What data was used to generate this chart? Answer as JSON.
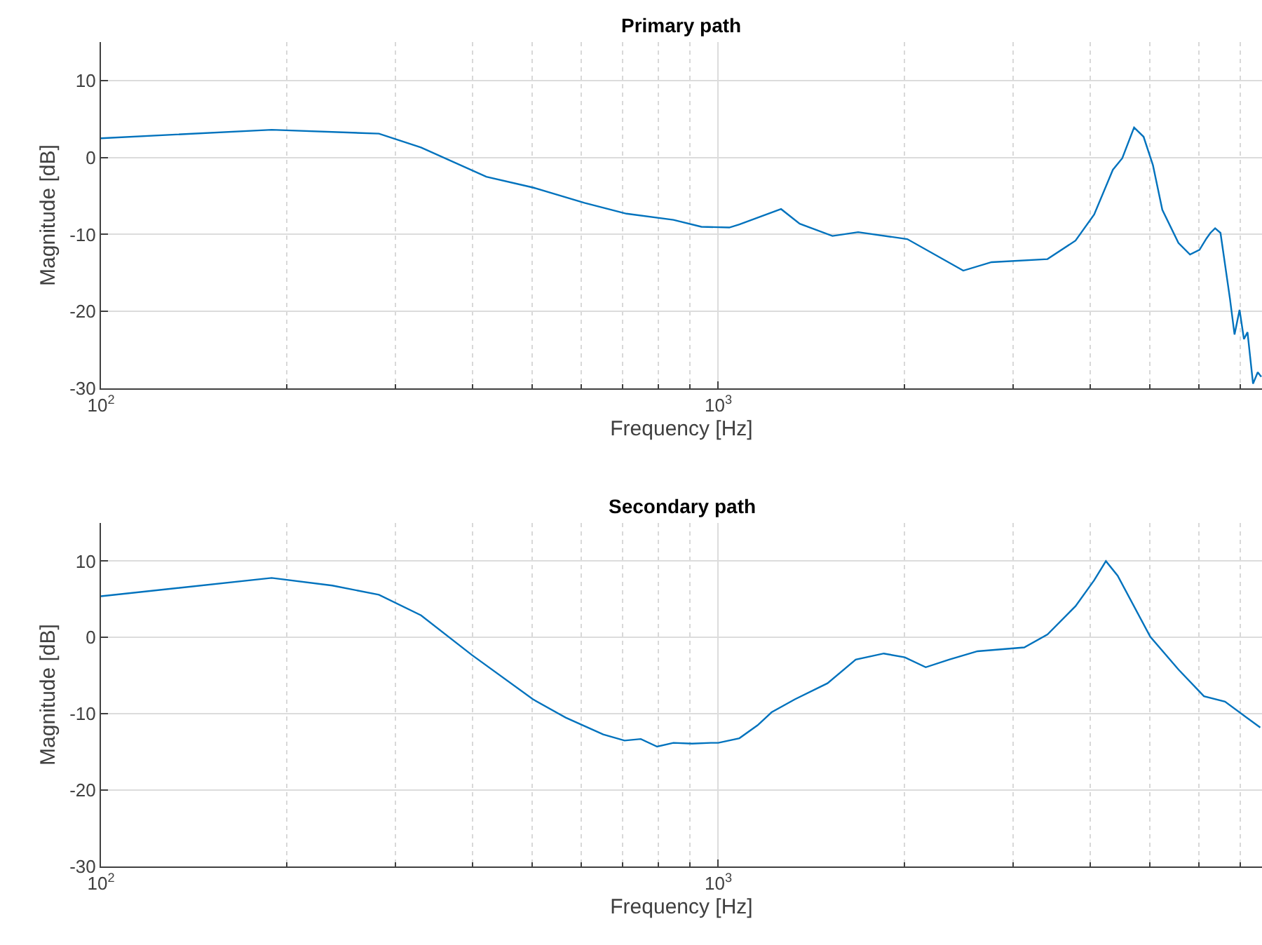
{
  "chart_data": [
    {
      "type": "line",
      "title": "Primary path",
      "xlabel": "Frequency [Hz]",
      "ylabel": "Magnitude [dB]",
      "log": "x",
      "grid": true,
      "marker": "none",
      "line_style": "solid",
      "xlim": [
        100,
        7600
      ],
      "ylim": [
        -30,
        15
      ],
      "xticks": [
        {
          "value": 100,
          "label": "10$^{2}$"
        },
        {
          "value": 200,
          "label": null
        },
        {
          "value": 300,
          "label": null
        },
        {
          "value": 400,
          "label": null
        },
        {
          "value": 500,
          "label": null
        },
        {
          "value": 600,
          "label": null
        },
        {
          "value": 700,
          "label": null
        },
        {
          "value": 800,
          "label": null
        },
        {
          "value": 900,
          "label": null
        },
        {
          "value": 1000,
          "label": "10$^{3}$"
        },
        {
          "value": 2000,
          "label": null
        },
        {
          "value": 3000,
          "label": null
        },
        {
          "value": 4000,
          "label": null
        },
        {
          "value": 5000,
          "label": null
        },
        {
          "value": 6000,
          "label": null
        },
        {
          "value": 7000,
          "label": null
        }
      ],
      "yticks": [
        -30,
        -20,
        -10,
        0,
        10
      ],
      "series": [
        {
          "color": "#0072bd",
          "x": [
            100,
            189,
            282,
            330,
            421,
            501,
            607,
            710,
            846,
            939,
            1042,
            1082,
            1264,
            1355,
            1531,
            1685,
            2024,
            2494,
            2771,
            3414,
            3791,
            4064,
            4357,
            4513,
            4716,
            4886,
            5060,
            5240,
            5565,
            5810,
            6020,
            6180,
            6270,
            6380,
            6510,
            6745,
            6860,
            6990,
            7105,
            7200,
            7350,
            7480,
            7580
          ],
          "values": [
            2.5,
            3.6,
            3.1,
            1.3,
            -2.5,
            -3.9,
            -5.9,
            -7.3,
            -8.1,
            -9.0,
            -9.1,
            -8.7,
            -6.7,
            -8.6,
            -10.2,
            -9.7,
            -10.6,
            -14.7,
            -13.6,
            -13.2,
            -10.8,
            -7.4,
            -1.6,
            -0.1,
            3.9,
            2.7,
            -1.0,
            -6.8,
            -11.1,
            -12.6,
            -12.0,
            -10.5,
            -9.8,
            -9.2,
            -9.8,
            -18.4,
            -23.0,
            -19.8,
            -23.6,
            -22.7,
            -29.4,
            -27.9,
            -28.5
          ]
        }
      ]
    },
    {
      "type": "line",
      "title": "Secondary path",
      "xlabel": "Frequency [Hz]",
      "ylabel": "Magnitude [dB]",
      "log": "x",
      "grid": true,
      "marker": "none",
      "line_style": "solid",
      "xlim": [
        100,
        7600
      ],
      "ylim": [
        -30,
        15
      ],
      "xticks": [
        {
          "value": 100,
          "label": "10$^{2}$"
        },
        {
          "value": 200,
          "label": null
        },
        {
          "value": 300,
          "label": null
        },
        {
          "value": 400,
          "label": null
        },
        {
          "value": 500,
          "label": null
        },
        {
          "value": 600,
          "label": null
        },
        {
          "value": 700,
          "label": null
        },
        {
          "value": 800,
          "label": null
        },
        {
          "value": 900,
          "label": null
        },
        {
          "value": 1000,
          "label": "10$^{3}$"
        },
        {
          "value": 2000,
          "label": null
        },
        {
          "value": 3000,
          "label": null
        },
        {
          "value": 4000,
          "label": null
        },
        {
          "value": 5000,
          "label": null
        },
        {
          "value": 6000,
          "label": null
        },
        {
          "value": 7000,
          "label": null
        }
      ],
      "yticks": [
        -30,
        -20,
        -10,
        0,
        10
      ],
      "series": [
        {
          "color": "#0072bd",
          "x": [
            100,
            189,
            237,
            282,
            330,
            399,
            501,
            566,
            651,
            705,
            749,
            796,
            846,
            907,
            973,
            1000,
            1082,
            1158,
            1220,
            1331,
            1503,
            1670,
            1854,
            2005,
            2168,
            2366,
            2630,
            3131,
            3414,
            3791,
            4064,
            4246,
            4436,
            5010,
            5565,
            6120,
            6620,
            7550
          ],
          "values": [
            5.4,
            7.8,
            6.8,
            5.6,
            2.9,
            -2.3,
            -8.1,
            -10.5,
            -12.7,
            -13.5,
            -13.3,
            -14.3,
            -13.8,
            -13.9,
            -13.8,
            -13.8,
            -13.2,
            -11.5,
            -9.8,
            -8.1,
            -6.0,
            -2.9,
            -2.1,
            -2.6,
            -3.9,
            -2.9,
            -1.8,
            -1.3,
            0.4,
            4.1,
            7.5,
            10.0,
            8.1,
            0.1,
            -4.2,
            -7.7,
            -8.4,
            -11.8
          ]
        }
      ]
    }
  ]
}
